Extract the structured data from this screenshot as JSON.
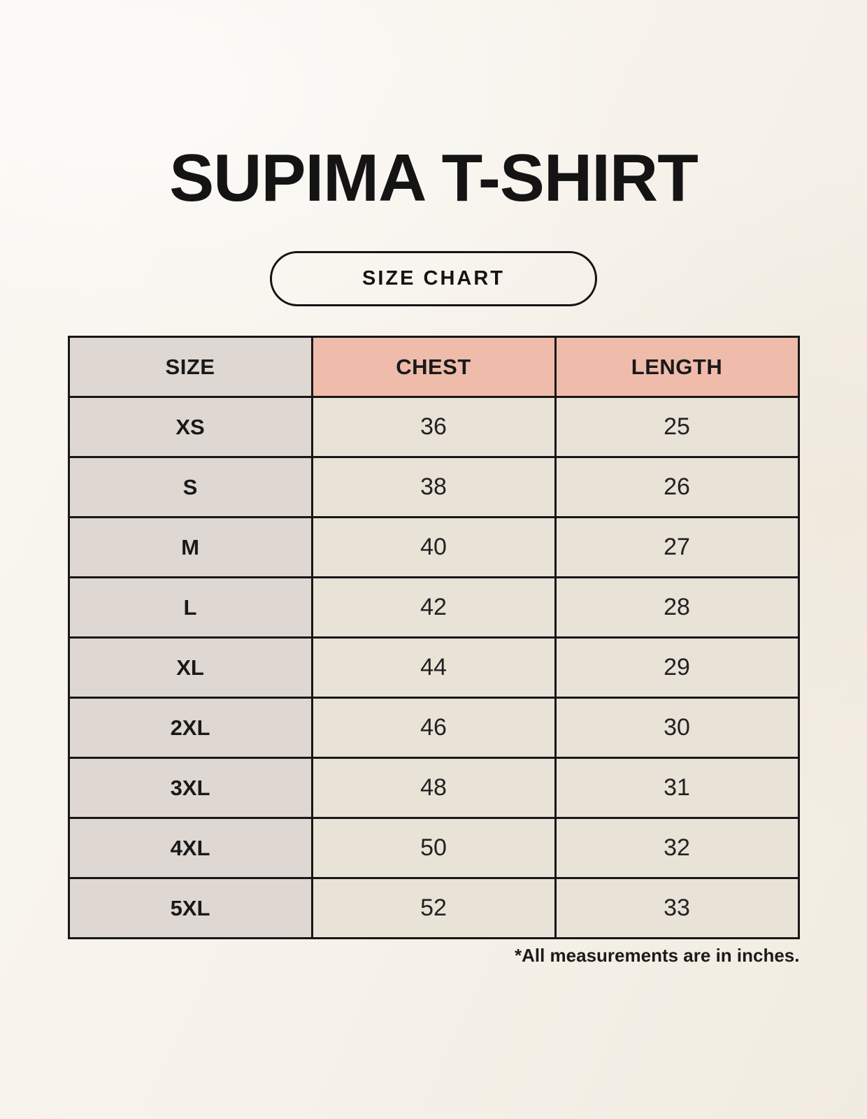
{
  "title": "SUPIMA T-SHIRT",
  "badge": {
    "label": "SIZE CHART"
  },
  "table": {
    "columns": [
      "SIZE",
      "CHEST",
      "LENGTH"
    ],
    "rows": [
      {
        "size": "XS",
        "chest": "36",
        "length": "25"
      },
      {
        "size": "S",
        "chest": "38",
        "length": "26"
      },
      {
        "size": "M",
        "chest": "40",
        "length": "27"
      },
      {
        "size": "L",
        "chest": "42",
        "length": "28"
      },
      {
        "size": "XL",
        "chest": "44",
        "length": "29"
      },
      {
        "size": "2XL",
        "chest": "46",
        "length": "30"
      },
      {
        "size": "3XL",
        "chest": "48",
        "length": "31"
      },
      {
        "size": "4XL",
        "chest": "50",
        "length": "32"
      },
      {
        "size": "5XL",
        "chest": "52",
        "length": "33"
      }
    ]
  },
  "footnote": "*All measurements are in inches.",
  "chart_data": {
    "type": "table",
    "title": "SUPIMA T-SHIRT size chart",
    "columns": [
      "SIZE",
      "CHEST",
      "LENGTH"
    ],
    "rows": [
      [
        "XS",
        36,
        25
      ],
      [
        "S",
        38,
        26
      ],
      [
        "M",
        40,
        27
      ],
      [
        "L",
        42,
        28
      ],
      [
        "XL",
        44,
        29
      ],
      [
        "2XL",
        46,
        30
      ],
      [
        "3XL",
        48,
        31
      ],
      [
        "4XL",
        50,
        32
      ],
      [
        "5XL",
        52,
        33
      ]
    ],
    "units": "inches"
  },
  "colors": {
    "page_background": "#f7f3ec",
    "size_column_background": "#ded7d2",
    "header_accent": "#efbcab",
    "cell_background": "#e9e2d7",
    "border": "#171717",
    "text": "#1b1b1b"
  }
}
